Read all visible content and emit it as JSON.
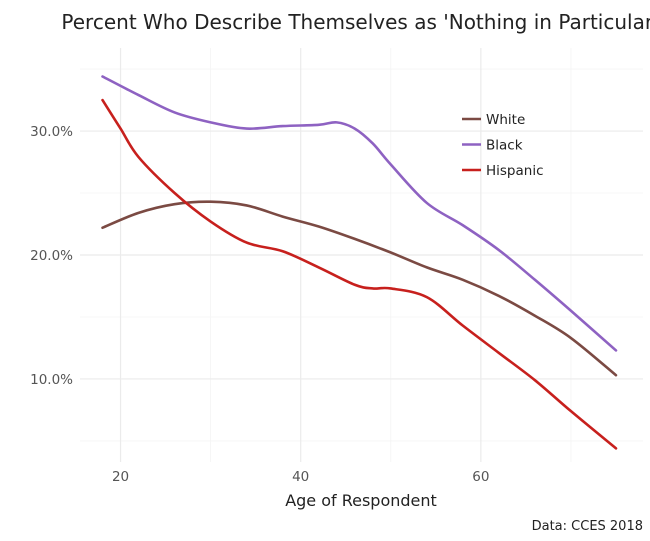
{
  "chart_data": {
    "type": "line",
    "title": "Percent Who Describe Themselves as 'Nothing in Particular'",
    "xlabel": "Age of Respondent",
    "ylabel": "",
    "caption": "Data: CCES 2018",
    "x_ticks": [
      20,
      40,
      60
    ],
    "y_ticks": [
      0.1,
      0.2,
      0.3
    ],
    "y_tick_labels": [
      "10.0%",
      "20.0%",
      "30.0%"
    ],
    "xlim": [
      15.5,
      78.0
    ],
    "ylim": [
      0.033,
      0.367
    ],
    "grid": true,
    "legend_position": "top-right inside plot",
    "series": [
      {
        "name": "White",
        "color": "#7b4a43",
        "x": [
          18,
          22,
          26,
          30,
          34,
          38,
          42,
          46,
          50,
          54,
          58,
          62,
          66,
          70,
          75
        ],
        "y": [
          0.222,
          0.234,
          0.241,
          0.243,
          0.24,
          0.231,
          0.223,
          0.213,
          0.202,
          0.19,
          0.18,
          0.167,
          0.151,
          0.133,
          0.103
        ]
      },
      {
        "name": "Black",
        "color": "#8e62c2",
        "x": [
          18,
          22,
          26,
          30,
          34,
          38,
          42,
          44,
          46,
          48,
          50,
          54,
          58,
          62,
          66,
          70,
          75
        ],
        "y": [
          0.344,
          0.329,
          0.315,
          0.307,
          0.302,
          0.304,
          0.305,
          0.307,
          0.302,
          0.29,
          0.273,
          0.242,
          0.224,
          0.204,
          0.18,
          0.155,
          0.123
        ]
      },
      {
        "name": "Hispanic",
        "color": "#c7201d",
        "x": [
          18,
          20,
          22,
          26,
          30,
          34,
          38,
          42,
          46,
          48,
          50,
          54,
          58,
          62,
          66,
          70,
          75
        ],
        "y": [
          0.325,
          0.302,
          0.279,
          0.25,
          0.227,
          0.21,
          0.203,
          0.19,
          0.176,
          0.173,
          0.173,
          0.166,
          0.143,
          0.121,
          0.099,
          0.074,
          0.044
        ]
      }
    ]
  }
}
